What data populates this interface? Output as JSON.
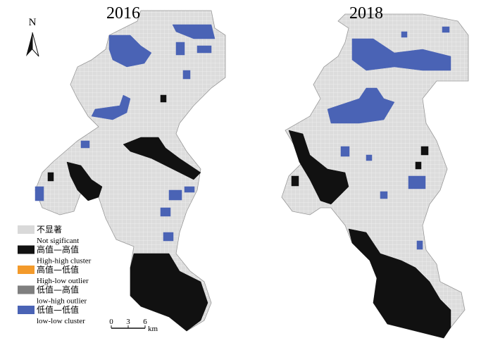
{
  "maps": [
    {
      "title": "2016"
    },
    {
      "title": "2018"
    }
  ],
  "north_arrow": "N",
  "legend": {
    "items": [
      {
        "label_zh": "不显著",
        "label_en": "Not sigificant",
        "color": "#d9d9d9"
      },
      {
        "label_zh": "高值—高值",
        "label_en": "High-high cluster",
        "color": "#111111"
      },
      {
        "label_zh": "高值—低值",
        "label_en": "High-low outlier",
        "color": "#f39a2b"
      },
      {
        "label_zh": "低值—高值",
        "label_en": "low-high outlier",
        "color": "#7f7f7f"
      },
      {
        "label_zh": "低值—低值",
        "label_en": "low-low cluster",
        "color": "#4a63b5"
      }
    ]
  },
  "scale_bar": {
    "ticks": [
      0,
      3,
      6
    ],
    "unit": "km"
  }
}
